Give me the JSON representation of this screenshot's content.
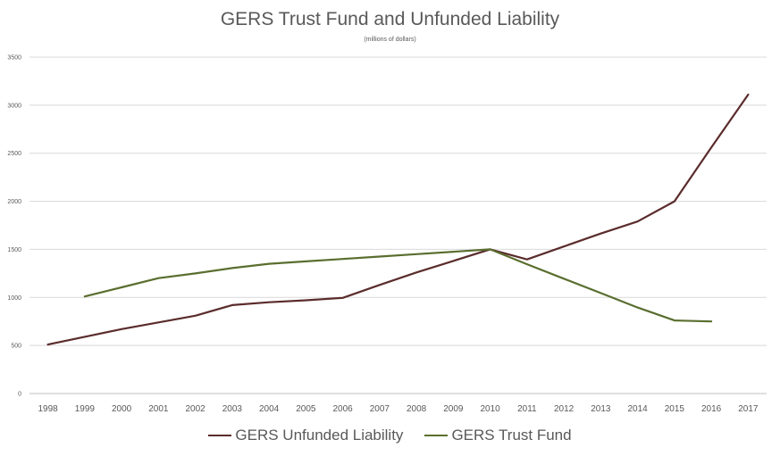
{
  "chart_data": {
    "type": "line",
    "title": "GERS Trust Fund and Unfunded Liability",
    "subtitle": "(millions of dollars)",
    "x": [
      "1998",
      "1999",
      "2000",
      "2001",
      "2002",
      "2003",
      "2004",
      "2005",
      "2006",
      "2007",
      "2008",
      "2009",
      "2010",
      "2011",
      "2012",
      "2013",
      "2014",
      "2015",
      "2016",
      "2017"
    ],
    "ylim": [
      0,
      3500
    ],
    "yticks": [
      0,
      500,
      1000,
      1500,
      2000,
      2500,
      3000,
      3500
    ],
    "grid": true,
    "legend": "bottom",
    "series": [
      {
        "name": "GERS Unfunded Liability",
        "color": "#5b2c2c",
        "values": [
          510,
          590,
          670,
          740,
          810,
          920,
          950,
          970,
          995,
          1130,
          1260,
          1380,
          1500,
          1395,
          1530,
          1665,
          1790,
          2000,
          2560,
          3110
        ]
      },
      {
        "name": "GERS Trust Fund",
        "color": "#5a6e2f",
        "values": [
          null,
          1010,
          1105,
          1200,
          1250,
          1305,
          1350,
          1375,
          1400,
          1425,
          1450,
          1475,
          1500,
          1345,
          1195,
          1045,
          895,
          760,
          750,
          null
        ]
      }
    ]
  }
}
